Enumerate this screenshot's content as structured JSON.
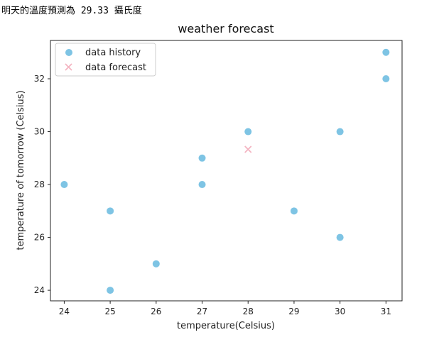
{
  "output_line": "明天的溫度預測為 29.33 攝氏度",
  "chart_data": {
    "type": "scatter",
    "title": "weather forecast",
    "xlabel": "temperature(Celsius)",
    "ylabel": "temperature of tomorrow (Celsius)",
    "xlim": [
      23.7,
      31.35
    ],
    "ylim": [
      23.6,
      33.45
    ],
    "xticks": [
      24,
      25,
      26,
      27,
      28,
      29,
      30,
      31
    ],
    "yticks": [
      24,
      26,
      28,
      30,
      32
    ],
    "legend_position": "top-left",
    "grid": false,
    "series": [
      {
        "name": "data history",
        "marker": "circle",
        "color": "#7ec4e4",
        "points": [
          [
            24,
            28
          ],
          [
            25,
            27
          ],
          [
            25,
            24
          ],
          [
            26,
            25
          ],
          [
            27,
            29
          ],
          [
            27,
            28
          ],
          [
            28,
            30
          ],
          [
            29,
            27
          ],
          [
            30,
            30
          ],
          [
            30,
            26
          ],
          [
            31,
            33
          ],
          [
            31,
            32
          ]
        ]
      },
      {
        "name": "data forecast",
        "marker": "x",
        "color": "#f4b5c2",
        "points": [
          [
            28,
            29.33
          ]
        ]
      }
    ]
  }
}
